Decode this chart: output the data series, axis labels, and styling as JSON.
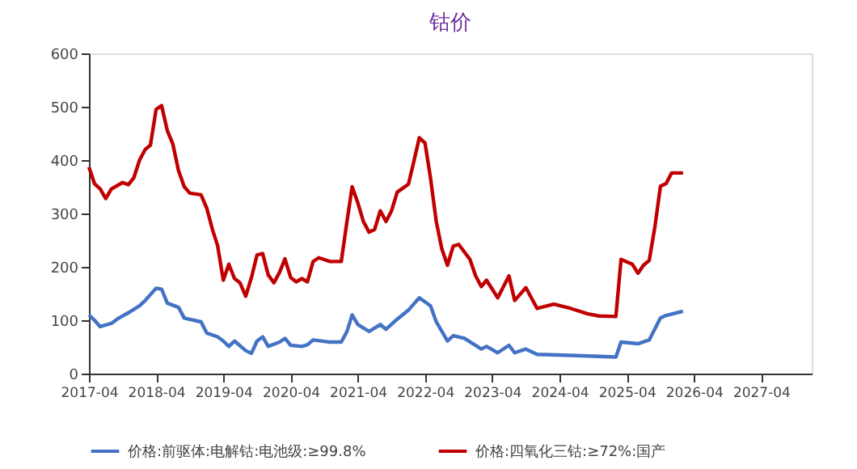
{
  "chart_data": {
    "type": "line",
    "title": "钴价",
    "xlim": [
      "2017-04",
      "2028-01"
    ],
    "xticks": [
      {
        "value": "2017-04",
        "label": "2017-04"
      },
      {
        "value": "2018-04",
        "label": "2018-04"
      },
      {
        "value": "2019-04",
        "label": "2019-04"
      },
      {
        "value": "2020-04",
        "label": "2020-04"
      },
      {
        "value": "2021-04",
        "label": "2021-04"
      },
      {
        "value": "2022-04",
        "label": "2022-04"
      },
      {
        "value": "2023-04",
        "label": "2023-04"
      },
      {
        "value": "2024-04",
        "label": "2024-04"
      },
      {
        "value": "2025-04",
        "label": "2025-04"
      },
      {
        "value": "2026-04",
        "label": "2026-04"
      },
      {
        "value": "2027-04",
        "label": "2027-04"
      }
    ],
    "ylim": [
      0,
      600
    ],
    "yticks": [
      0,
      100,
      200,
      300,
      400,
      500,
      600
    ],
    "grid": false,
    "legend": "bottom",
    "marker": "none",
    "line_style": "solid",
    "series": [
      {
        "name": "价格:前驱体:电解钴:电池级:≥99.8%",
        "color": "#4472c4",
        "x": [
          "2017-04",
          "2017-05",
          "2017-06",
          "2017-08",
          "2017-09",
          "2017-11",
          "2018-01",
          "2018-02",
          "2018-04",
          "2018-05",
          "2018-06",
          "2018-08",
          "2018-09",
          "2018-12",
          "2019-01",
          "2019-03",
          "2019-04",
          "2019-05",
          "2019-06",
          "2019-08",
          "2019-09",
          "2019-10",
          "2019-11",
          "2019-12",
          "2020-02",
          "2020-03",
          "2020-04",
          "2020-06",
          "2020-07",
          "2020-08",
          "2020-11",
          "2021-01",
          "2021-02",
          "2021-03",
          "2021-04",
          "2021-06",
          "2021-08",
          "2021-09",
          "2021-11",
          "2022-01",
          "2022-03",
          "2022-05",
          "2022-06",
          "2022-08",
          "2022-09",
          "2022-11",
          "2023-02",
          "2023-03",
          "2023-05",
          "2023-07",
          "2023-08",
          "2023-10",
          "2023-12",
          "2024-06",
          "2025-02",
          "2025-03",
          "2025-06",
          "2025-08",
          "2025-10",
          "2025-11",
          "2026-02"
        ],
        "values": [
          110,
          100,
          88,
          94,
          102,
          114,
          127,
          137,
          160,
          158,
          132,
          124,
          104,
          97,
          76,
          69,
          61,
          51,
          61,
          43,
          38,
          61,
          69,
          51,
          59,
          66,
          53,
          51,
          54,
          63,
          59,
          59,
          79,
          110,
          92,
          79,
          92,
          83,
          102,
          119,
          142,
          127,
          97,
          61,
          71,
          66,
          46,
          51,
          39,
          53,
          39,
          46,
          36,
          34,
          31,
          59,
          56,
          63,
          104,
          109,
          117
        ]
      },
      {
        "name": "价格:四氧化三钴:≥72%:国产",
        "color": "#c00000",
        "x": [
          "2017-04",
          "2017-05",
          "2017-06",
          "2017-07",
          "2017-08",
          "2017-10",
          "2017-11",
          "2017-12",
          "2018-01",
          "2018-02",
          "2018-03",
          "2018-04",
          "2018-05",
          "2018-06",
          "2018-07",
          "2018-08",
          "2018-09",
          "2018-10",
          "2018-12",
          "2019-01",
          "2019-02",
          "2019-03",
          "2019-04",
          "2019-05",
          "2019-06",
          "2019-07",
          "2019-08",
          "2019-09",
          "2019-10",
          "2019-11",
          "2019-12",
          "2020-01",
          "2020-02",
          "2020-03",
          "2020-04",
          "2020-05",
          "2020-06",
          "2020-07",
          "2020-08",
          "2020-09",
          "2020-11",
          "2021-01",
          "2021-02",
          "2021-03",
          "2021-04",
          "2021-05",
          "2021-06",
          "2021-07",
          "2021-08",
          "2021-09",
          "2021-10",
          "2021-11",
          "2022-01",
          "2022-02",
          "2022-03",
          "2022-04",
          "2022-05",
          "2022-06",
          "2022-07",
          "2022-08",
          "2022-09",
          "2022-10",
          "2022-12",
          "2023-01",
          "2023-02",
          "2023-03",
          "2023-05",
          "2023-07",
          "2023-08",
          "2023-10",
          "2023-12",
          "2024-03",
          "2024-06",
          "2024-09",
          "2024-11",
          "2025-02",
          "2025-03",
          "2025-05",
          "2025-06",
          "2025-07",
          "2025-08",
          "2025-09",
          "2025-10",
          "2025-11",
          "2025-12",
          "2026-02"
        ],
        "values": [
          387,
          356,
          346,
          328,
          346,
          358,
          354,
          367,
          400,
          420,
          428,
          495,
          502,
          455,
          430,
          380,
          350,
          338,
          335,
          310,
          270,
          240,
          175,
          205,
          178,
          170,
          145,
          180,
          222,
          225,
          185,
          170,
          190,
          215,
          180,
          172,
          178,
          172,
          210,
          217,
          210,
          210,
          285,
          350,
          320,
          285,
          265,
          270,
          305,
          285,
          305,
          340,
          355,
          400,
          442,
          432,
          366,
          285,
          234,
          203,
          239,
          242,
          214,
          183,
          163,
          175,
          142,
          183,
          137,
          161,
          122,
          130,
          122,
          112,
          108,
          107,
          214,
          205,
          188,
          203,
          212,
          275,
          351,
          356,
          376,
          376
        ]
      }
    ]
  }
}
